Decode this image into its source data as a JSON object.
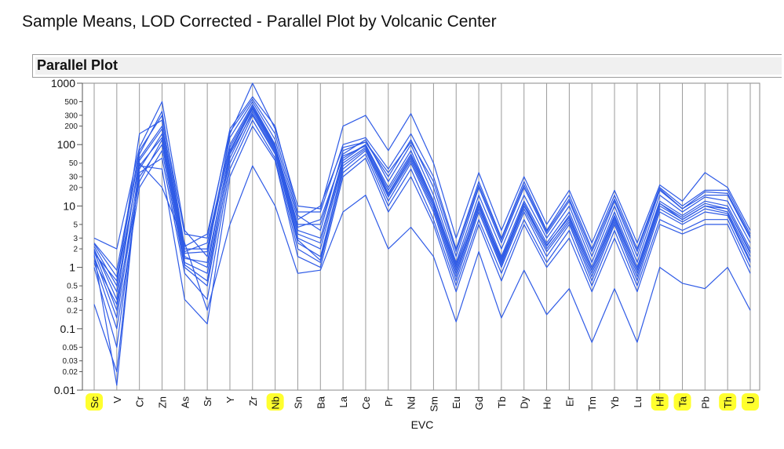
{
  "page_title": "Sample Means, LOD Corrected - Parallel Plot by Volcanic Center",
  "panel": {
    "title": "Parallel Plot"
  },
  "chart_data": {
    "type": "line",
    "xlabel": "EVC",
    "y_scale": "log",
    "ylim": [
      0.01,
      1000
    ],
    "y_ticks": [
      0.01,
      0.02,
      0.03,
      0.05,
      0.1,
      0.2,
      0.3,
      0.5,
      1,
      2,
      3,
      5,
      10,
      20,
      30,
      50,
      100,
      200,
      300,
      500,
      1000
    ],
    "y_tick_labels": [
      "0.01",
      "0.02",
      "0.03",
      "0.05",
      "0.1",
      "0.2",
      "0.3",
      "0.5",
      "1",
      "2",
      "3",
      "5",
      "10",
      "20",
      "30",
      "50",
      "100",
      "200",
      "300",
      "500",
      "1000"
    ],
    "y_major_ticks": [
      "0.01",
      "0.1",
      "1",
      "10",
      "100",
      "1000"
    ],
    "categories": [
      "Sc",
      "V",
      "Cr",
      "Zn",
      "As",
      "Sr",
      "Y",
      "Zr",
      "Nb",
      "Sn",
      "Ba",
      "La",
      "Ce",
      "Pr",
      "Nd",
      "Sm",
      "Eu",
      "Gd",
      "Tb",
      "Dy",
      "Ho",
      "Er",
      "Tm",
      "Yb",
      "Lu",
      "Hf",
      "Ta",
      "Pb",
      "Th",
      "U"
    ],
    "highlighted_categories": [
      "Sc",
      "Nb",
      "Hf",
      "Ta",
      "Th",
      "U"
    ],
    "grid": true,
    "line_color": "#2f5be6",
    "highlight_color": "#ffff2e",
    "series": [
      {
        "values": [
          3.0,
          2.0,
          90,
          500,
          4,
          1.5,
          150,
          1000,
          180,
          10,
          9,
          200,
          300,
          80,
          320,
          50,
          3,
          35,
          4,
          30,
          5,
          18,
          2.5,
          18,
          2.5,
          22,
          12,
          35,
          20,
          4
        ]
      },
      {
        "values": [
          2.5,
          0.9,
          80,
          300,
          3.5,
          3,
          180,
          600,
          200,
          8,
          8,
          100,
          130,
          40,
          150,
          30,
          2,
          25,
          3,
          25,
          4,
          15,
          2,
          15,
          2,
          20,
          10,
          18,
          18,
          3.5
        ]
      },
      {
        "values": [
          2.2,
          0.5,
          150,
          250,
          2,
          2,
          130,
          500,
          120,
          6,
          10,
          90,
          110,
          30,
          120,
          20,
          1.5,
          20,
          2.5,
          20,
          3.5,
          12,
          1.5,
          12,
          1.5,
          18,
          9,
          15,
          15,
          3
        ]
      },
      {
        "values": [
          2.0,
          0.3,
          60,
          200,
          1.8,
          2.5,
          100,
          450,
          100,
          5,
          5,
          70,
          120,
          25,
          100,
          15,
          1.2,
          15,
          2,
          15,
          3,
          10,
          1.2,
          10,
          1.2,
          15,
          8,
          14,
          12,
          2.5
        ]
      },
      {
        "values": [
          1.8,
          0.2,
          40,
          150,
          1.5,
          1,
          80,
          400,
          90,
          4,
          3,
          60,
          100,
          20,
          80,
          12,
          1,
          12,
          1.5,
          12,
          2.5,
          8,
          1,
          8,
          1,
          12,
          7,
          12,
          10,
          2
        ]
      },
      {
        "values": [
          1.5,
          0.15,
          30,
          100,
          1.2,
          0.8,
          60,
          350,
          80,
          3,
          2,
          50,
          90,
          15,
          60,
          10,
          0.8,
          10,
          1.2,
          10,
          2,
          6,
          0.8,
          6,
          0.8,
          10,
          6,
          10,
          8,
          1.5
        ]
      },
      {
        "values": [
          1.2,
          0.1,
          20,
          80,
          1,
          0.5,
          50,
          300,
          70,
          2.5,
          1.5,
          40,
          80,
          12,
          50,
          8,
          0.6,
          8,
          1,
          8,
          1.5,
          5,
          0.6,
          5,
          0.6,
          8,
          5,
          8,
          7,
          1.2
        ]
      },
      {
        "values": [
          1.0,
          0.05,
          35,
          60,
          0.8,
          0.3,
          40,
          250,
          60,
          2,
          1.2,
          35,
          70,
          10,
          40,
          6,
          0.5,
          6,
          0.8,
          6,
          1.2,
          4,
          0.5,
          4,
          0.5,
          6,
          4,
          6,
          6,
          1
        ]
      },
      {
        "values": [
          0.25,
          0.02,
          45,
          40,
          0.3,
          0.12,
          30,
          200,
          55,
          1.5,
          1,
          30,
          60,
          8,
          30,
          5,
          0.4,
          5,
          0.6,
          5,
          1,
          3,
          0.4,
          3,
          0.4,
          5,
          3.5,
          5,
          5,
          0.8
        ]
      },
      {
        "values": [
          1.6,
          0.012,
          50,
          20,
          2.5,
          0.2,
          5,
          45,
          10,
          0.8,
          0.9,
          8,
          15,
          2,
          4.5,
          1.5,
          0.13,
          1.8,
          0.15,
          0.9,
          0.17,
          0.45,
          0.06,
          0.45,
          0.06,
          1,
          0.55,
          0.45,
          1,
          0.2
        ]
      },
      {
        "values": [
          2.4,
          0.7,
          70,
          350,
          2.2,
          3.5,
          160,
          550,
          150,
          7,
          4,
          80,
          110,
          35,
          110,
          25,
          1.8,
          22,
          2.8,
          22,
          3.8,
          13,
          1.8,
          13,
          1.8,
          19,
          9,
          17,
          16,
          3.2
        ]
      },
      {
        "values": [
          1.9,
          0.4,
          55,
          180,
          1.7,
          1.8,
          90,
          420,
          95,
          4.5,
          6,
          65,
          95,
          18,
          70,
          12,
          1.1,
          11,
          1.3,
          11,
          2.2,
          7,
          0.9,
          7,
          0.9,
          11,
          6.5,
          11,
          9,
          1.8
        ]
      },
      {
        "values": [
          1.3,
          0.25,
          25,
          120,
          1.1,
          0.6,
          70,
          320,
          75,
          2.8,
          1.3,
          45,
          85,
          14,
          55,
          9,
          0.7,
          9,
          1.1,
          9,
          1.8,
          5.5,
          0.7,
          5.5,
          0.7,
          9,
          5.5,
          9,
          7.5,
          1.3
        ]
      },
      {
        "values": [
          1.7,
          0.6,
          45,
          130,
          1.4,
          1.2,
          75,
          380,
          85,
          3.5,
          2.5,
          55,
          100,
          16,
          65,
          11,
          0.9,
          10,
          1.4,
          10,
          2.3,
          6.5,
          0.9,
          6.5,
          0.9,
          11,
          6,
          10,
          9,
          1.7
        ]
      }
    ]
  }
}
